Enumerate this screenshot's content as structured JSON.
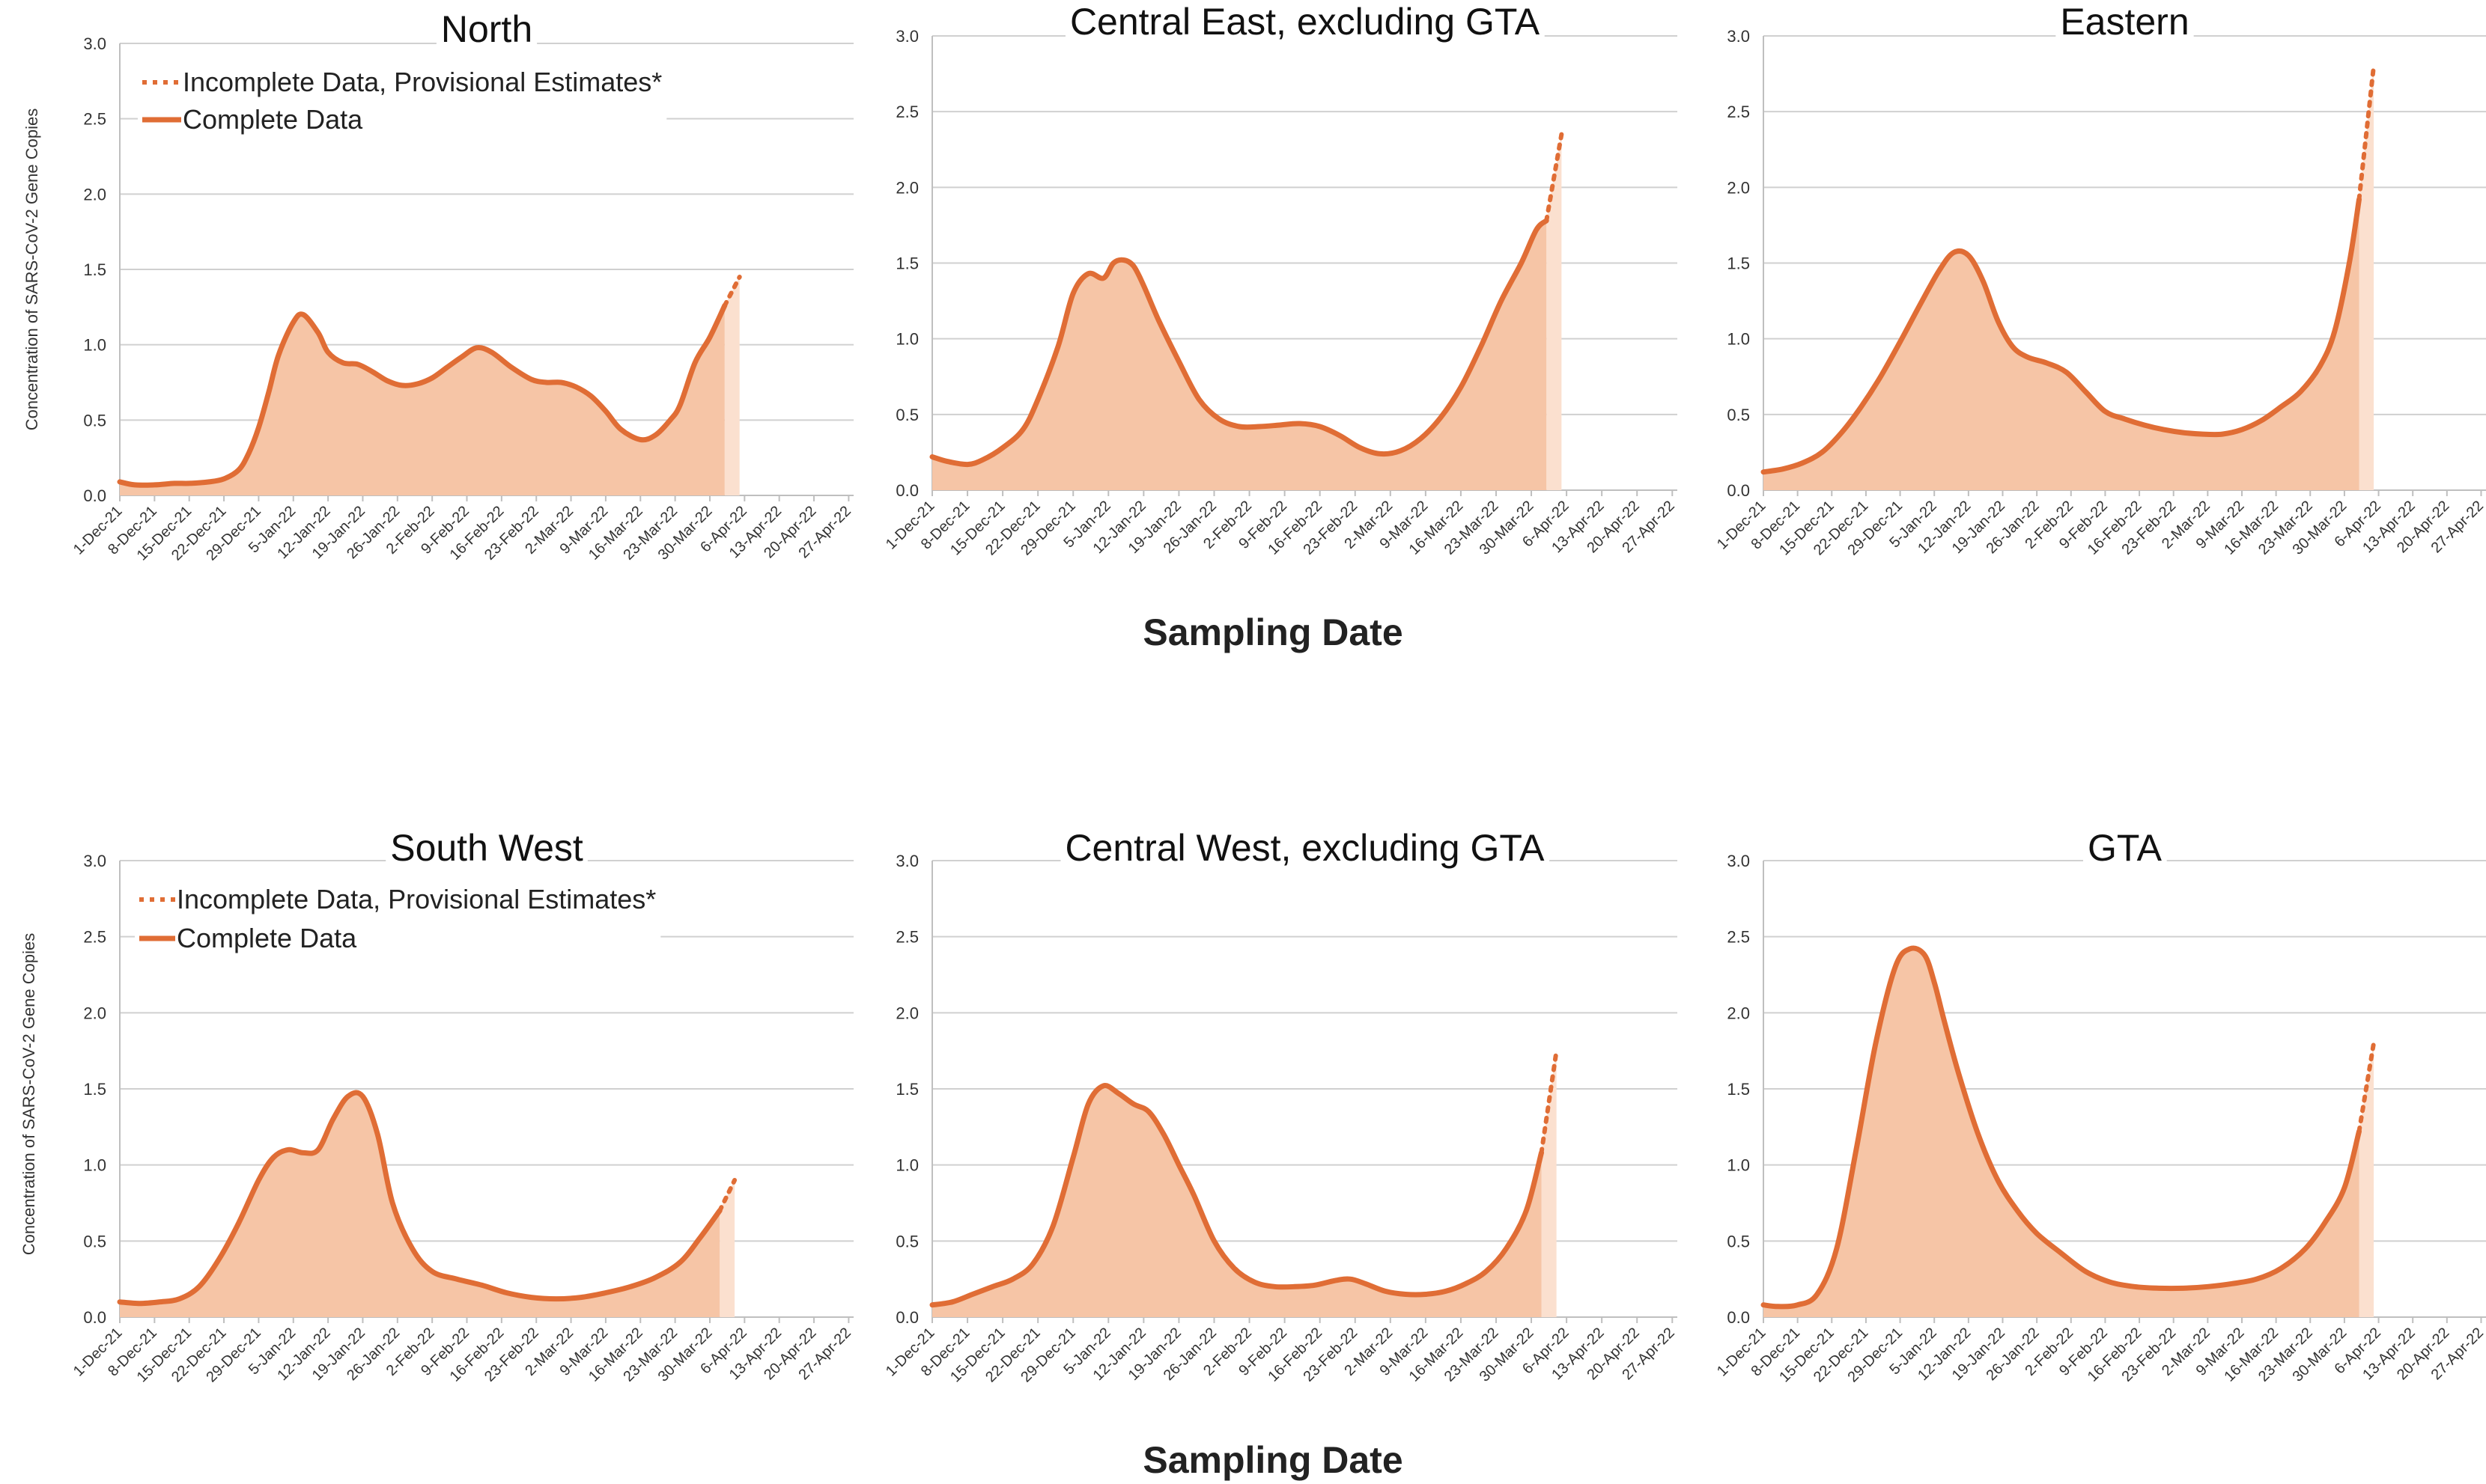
{
  "colors": {
    "line": "#e06d35",
    "fill": "#f6c5a6",
    "fill_provisional": "#fbe0cf",
    "grid": "#d0d0d0"
  },
  "figure": {
    "xlabel_top": "Sampling Date",
    "xlabel_bottom": "Sampling Date",
    "ylabel": "Concentration of SARS-CoV-2 Gene Copies"
  },
  "legend": {
    "incomplete": "Incomplete Data, Provisional Estimates*",
    "complete": "Complete Data"
  },
  "chart_data": [
    {
      "type": "area",
      "title": "North",
      "xlabel": "Sampling Date",
      "ylabel": "Concentration of SARS-CoV-2 Gene Copies",
      "ylim": [
        0,
        3.0
      ],
      "yticks": [
        "0.0",
        "0.5",
        "1.0",
        "1.5",
        "2.0",
        "2.5",
        "3.0"
      ],
      "x_ticks": [
        "1-Dec-21",
        "8-Dec-21",
        "15-Dec-21",
        "22-Dec-21",
        "29-Dec-21",
        "5-Jan-22",
        "12-Jan-22",
        "19-Jan-22",
        "26-Jan-22",
        "2-Feb-22",
        "9-Feb-22",
        "16-Feb-22",
        "23-Feb-22",
        "2-Mar-22",
        "9-Mar-22",
        "16-Mar-22",
        "23-Mar-22",
        "30-Mar-22",
        "6-Apr-22",
        "13-Apr-22",
        "20-Apr-22",
        "27-Apr-22"
      ],
      "grid": true,
      "legend_position": "top-left",
      "series": [
        {
          "name": "Complete Data",
          "x": [
            "1-Dec-21",
            "4-Dec-21",
            "8-Dec-21",
            "12-Dec-21",
            "15-Dec-21",
            "19-Dec-21",
            "22-Dec-21",
            "25-Dec-21",
            "27-Dec-21",
            "29-Dec-21",
            "31-Dec-21",
            "2-Jan-22",
            "5-Jan-22",
            "7-Jan-22",
            "10-Jan-22",
            "12-Jan-22",
            "15-Jan-22",
            "18-Jan-22",
            "21-Jan-22",
            "24-Jan-22",
            "27-Jan-22",
            "30-Jan-22",
            "2-Feb-22",
            "5-Feb-22",
            "8-Feb-22",
            "11-Feb-22",
            "14-Feb-22",
            "18-Feb-22",
            "22-Feb-22",
            "25-Feb-22",
            "28-Feb-22",
            "3-Mar-22",
            "6-Mar-22",
            "9-Mar-22",
            "12-Mar-22",
            "16-Mar-22",
            "19-Mar-22",
            "22-Mar-22",
            "24-Mar-22",
            "27-Mar-22",
            "30-Mar-22",
            "2-Apr-22"
          ],
          "values": [
            0.09,
            0.07,
            0.07,
            0.08,
            0.08,
            0.09,
            0.11,
            0.17,
            0.28,
            0.45,
            0.68,
            0.93,
            1.15,
            1.2,
            1.08,
            0.95,
            0.88,
            0.87,
            0.82,
            0.76,
            0.73,
            0.74,
            0.78,
            0.85,
            0.92,
            0.98,
            0.95,
            0.85,
            0.77,
            0.75,
            0.75,
            0.72,
            0.66,
            0.56,
            0.44,
            0.37,
            0.4,
            0.5,
            0.6,
            0.88,
            1.05,
            1.26
          ]
        },
        {
          "name": "Incomplete Data, Provisional Estimates*",
          "x": [
            "2-Apr-22",
            "5-Apr-22"
          ],
          "values": [
            1.26,
            1.45
          ]
        }
      ]
    },
    {
      "type": "area",
      "title": "Central East, excluding GTA",
      "ylim": [
        0,
        3.0
      ],
      "yticks": [
        "0.0",
        "0.5",
        "1.0",
        "1.5",
        "2.0",
        "2.5",
        "3.0"
      ],
      "x_ticks": [
        "1-Dec-21",
        "8-Dec-21",
        "15-Dec-21",
        "22-Dec-21",
        "29-Dec-21",
        "5-Jan-22",
        "12-Jan-22",
        "19-Jan-22",
        "26-Jan-22",
        "2-Feb-22",
        "9-Feb-22",
        "16-Feb-22",
        "23-Feb-22",
        "2-Mar-22",
        "9-Mar-22",
        "16-Mar-22",
        "23-Mar-22",
        "30-Mar-22",
        "6-Apr-22",
        "13-Apr-22",
        "20-Apr-22",
        "27-Apr-22"
      ],
      "grid": true,
      "series": [
        {
          "name": "Complete Data",
          "x": [
            "1-Dec-21",
            "4-Dec-21",
            "8-Dec-21",
            "11-Dec-21",
            "15-Dec-21",
            "19-Dec-21",
            "22-Dec-21",
            "26-Dec-21",
            "29-Dec-21",
            "1-Jan-22",
            "4-Jan-22",
            "6-Jan-22",
            "8-Jan-22",
            "10-Jan-22",
            "12-Jan-22",
            "15-Jan-22",
            "19-Jan-22",
            "23-Jan-22",
            "27-Jan-22",
            "31-Jan-22",
            "4-Feb-22",
            "8-Feb-22",
            "12-Feb-22",
            "16-Feb-22",
            "20-Feb-22",
            "24-Feb-22",
            "28-Feb-22",
            "4-Mar-22",
            "8-Mar-22",
            "12-Mar-22",
            "16-Mar-22",
            "20-Mar-22",
            "24-Mar-22",
            "28-Mar-22",
            "31-Mar-22",
            "2-Apr-22"
          ],
          "values": [
            0.22,
            0.19,
            0.17,
            0.2,
            0.28,
            0.4,
            0.6,
            0.95,
            1.3,
            1.43,
            1.4,
            1.5,
            1.52,
            1.48,
            1.35,
            1.12,
            0.85,
            0.6,
            0.47,
            0.42,
            0.42,
            0.43,
            0.44,
            0.42,
            0.36,
            0.28,
            0.24,
            0.26,
            0.34,
            0.48,
            0.68,
            0.95,
            1.25,
            1.5,
            1.72,
            1.78
          ]
        },
        {
          "name": "Incomplete Data, Provisional Estimates*",
          "x": [
            "2-Apr-22",
            "5-Apr-22"
          ],
          "values": [
            1.78,
            2.35
          ]
        }
      ]
    },
    {
      "type": "area",
      "title": "Eastern",
      "ylim": [
        0,
        3.0
      ],
      "yticks": [
        "0.0",
        "0.5",
        "1.0",
        "1.5",
        "2.0",
        "2.5",
        "3.0"
      ],
      "x_ticks": [
        "1-Dec-21",
        "8-Dec-21",
        "15-Dec-21",
        "22-Dec-21",
        "29-Dec-21",
        "5-Jan-22",
        "12-Jan-22",
        "19-Jan-22",
        "26-Jan-22",
        "2-Feb-22",
        "9-Feb-22",
        "16-Feb-22",
        "23-Feb-22",
        "2-Mar-22",
        "9-Mar-22",
        "16-Mar-22",
        "23-Mar-22",
        "30-Mar-22",
        "6-Apr-22",
        "13-Apr-22",
        "20-Apr-22",
        "27-Apr-22"
      ],
      "grid": true,
      "series": [
        {
          "name": "Complete Data",
          "x": [
            "1-Dec-21",
            "5-Dec-21",
            "9-Dec-21",
            "13-Dec-21",
            "17-Dec-21",
            "21-Dec-21",
            "25-Dec-21",
            "29-Dec-21",
            "2-Jan-22",
            "6-Jan-22",
            "9-Jan-22",
            "12-Jan-22",
            "15-Jan-22",
            "18-Jan-22",
            "21-Jan-22",
            "24-Jan-22",
            "28-Jan-22",
            "1-Feb-22",
            "5-Feb-22",
            "9-Feb-22",
            "13-Feb-22",
            "17-Feb-22",
            "21-Feb-22",
            "25-Feb-22",
            "1-Mar-22",
            "5-Mar-22",
            "9-Mar-22",
            "13-Mar-22",
            "17-Mar-22",
            "21-Mar-22",
            "25-Mar-22",
            "28-Mar-22",
            "31-Mar-22",
            "2-Apr-22"
          ],
          "values": [
            0.12,
            0.14,
            0.18,
            0.25,
            0.38,
            0.55,
            0.75,
            0.98,
            1.22,
            1.45,
            1.57,
            1.55,
            1.38,
            1.12,
            0.95,
            0.88,
            0.84,
            0.78,
            0.65,
            0.52,
            0.47,
            0.43,
            0.4,
            0.38,
            0.37,
            0.37,
            0.4,
            0.46,
            0.55,
            0.65,
            0.82,
            1.05,
            1.5,
            1.92
          ]
        },
        {
          "name": "Incomplete Data, Provisional Estimates*",
          "x": [
            "2-Apr-22",
            "5-Apr-22"
          ],
          "values": [
            1.92,
            2.8
          ]
        }
      ]
    },
    {
      "type": "area",
      "title": "South West",
      "ylim": [
        0,
        3.0
      ],
      "yticks": [
        "0.0",
        "0.5",
        "1.0",
        "1.5",
        "2.0",
        "2.5",
        "3.0"
      ],
      "x_ticks": [
        "1-Dec-21",
        "8-Dec-21",
        "15-Dec-21",
        "22-Dec-21",
        "29-Dec-21",
        "5-Jan-22",
        "12-Jan-22",
        "19-Jan-22",
        "26-Jan-22",
        "2-Feb-22",
        "9-Feb-22",
        "16-Feb-22",
        "23-Feb-22",
        "2-Mar-22",
        "9-Mar-22",
        "16-Mar-22",
        "23-Mar-22",
        "30-Mar-22",
        "6-Apr-22",
        "13-Apr-22",
        "20-Apr-22",
        "27-Apr-22"
      ],
      "grid": true,
      "legend_position": "top-left",
      "series": [
        {
          "name": "Complete Data",
          "x": [
            "1-Dec-21",
            "5-Dec-21",
            "9-Dec-21",
            "13-Dec-21",
            "17-Dec-21",
            "21-Dec-21",
            "25-Dec-21",
            "29-Dec-21",
            "1-Jan-22",
            "4-Jan-22",
            "7-Jan-22",
            "10-Jan-22",
            "13-Jan-22",
            "16-Jan-22",
            "19-Jan-22",
            "22-Jan-22",
            "25-Jan-22",
            "29-Jan-22",
            "2-Feb-22",
            "7-Feb-22",
            "12-Feb-22",
            "17-Feb-22",
            "22-Feb-22",
            "27-Feb-22",
            "4-Mar-22",
            "9-Mar-22",
            "14-Mar-22",
            "19-Mar-22",
            "24-Mar-22",
            "28-Mar-22",
            "1-Apr-22"
          ],
          "values": [
            0.1,
            0.09,
            0.1,
            0.12,
            0.2,
            0.38,
            0.62,
            0.9,
            1.05,
            1.1,
            1.08,
            1.1,
            1.3,
            1.45,
            1.45,
            1.2,
            0.75,
            0.45,
            0.3,
            0.25,
            0.21,
            0.16,
            0.13,
            0.12,
            0.13,
            0.16,
            0.2,
            0.26,
            0.36,
            0.52,
            0.7
          ]
        },
        {
          "name": "Incomplete Data, Provisional Estimates*",
          "x": [
            "1-Apr-22",
            "4-Apr-22"
          ],
          "values": [
            0.7,
            0.9
          ]
        }
      ]
    },
    {
      "type": "area",
      "title": "Central West, excluding GTA",
      "ylim": [
        0,
        3.0
      ],
      "yticks": [
        "0.0",
        "0.5",
        "1.0",
        "1.5",
        "2.0",
        "2.5",
        "3.0"
      ],
      "x_ticks": [
        "1-Dec-21",
        "8-Dec-21",
        "15-Dec-21",
        "22-Dec-21",
        "29-Dec-21",
        "5-Jan-22",
        "12-Jan-22",
        "19-Jan-22",
        "26-Jan-22",
        "2-Feb-22",
        "9-Feb-22",
        "16-Feb-22",
        "23-Feb-22",
        "2-Mar-22",
        "9-Mar-22",
        "16-Mar-22",
        "23-Mar-22",
        "30-Mar-22",
        "6-Apr-22",
        "13-Apr-22",
        "20-Apr-22",
        "27-Apr-22"
      ],
      "grid": true,
      "series": [
        {
          "name": "Complete Data",
          "x": [
            "1-Dec-21",
            "5-Dec-21",
            "9-Dec-21",
            "13-Dec-21",
            "17-Dec-21",
            "21-Dec-21",
            "25-Dec-21",
            "29-Dec-21",
            "1-Jan-22",
            "4-Jan-22",
            "7-Jan-22",
            "10-Jan-22",
            "13-Jan-22",
            "16-Jan-22",
            "19-Jan-22",
            "22-Jan-22",
            "26-Jan-22",
            "30-Jan-22",
            "3-Feb-22",
            "7-Feb-22",
            "11-Feb-22",
            "15-Feb-22",
            "19-Feb-22",
            "22-Feb-22",
            "25-Feb-22",
            "1-Mar-22",
            "5-Mar-22",
            "9-Mar-22",
            "13-Mar-22",
            "17-Mar-22",
            "21-Mar-22",
            "25-Mar-22",
            "29-Mar-22",
            "1-Apr-22"
          ],
          "values": [
            0.08,
            0.1,
            0.15,
            0.2,
            0.25,
            0.35,
            0.6,
            1.05,
            1.4,
            1.52,
            1.47,
            1.4,
            1.35,
            1.2,
            1.0,
            0.8,
            0.5,
            0.32,
            0.23,
            0.2,
            0.2,
            0.21,
            0.24,
            0.25,
            0.22,
            0.17,
            0.15,
            0.15,
            0.17,
            0.22,
            0.3,
            0.45,
            0.7,
            1.08
          ]
        },
        {
          "name": "Incomplete Data, Provisional Estimates*",
          "x": [
            "1-Apr-22",
            "4-Apr-22"
          ],
          "values": [
            1.08,
            1.75
          ]
        }
      ]
    },
    {
      "type": "area",
      "title": "GTA",
      "ylim": [
        0,
        3.0
      ],
      "yticks": [
        "0.0",
        "0.5",
        "1.0",
        "1.5",
        "2.0",
        "2.5",
        "3.0"
      ],
      "x_ticks": [
        "1-Dec-21",
        "8-Dec-21",
        "15-Dec-21",
        "22-Dec-21",
        "29-Dec-21",
        "5-Jan-22",
        "12-Jan-22",
        "19-Jan-22",
        "26-Jan-22",
        "2-Feb-22",
        "9-Feb-22",
        "16-Feb-22",
        "23-Feb-22",
        "2-Mar-22",
        "9-Mar-22",
        "16-Mar-22",
        "23-Mar-22",
        "30-Mar-22",
        "6-Apr-22",
        "13-Apr-22",
        "20-Apr-22",
        "27-Apr-22"
      ],
      "grid": true,
      "series": [
        {
          "name": "Complete Data",
          "x": [
            "1-Dec-21",
            "4-Dec-21",
            "8-Dec-21",
            "12-Dec-21",
            "16-Dec-21",
            "20-Dec-21",
            "24-Dec-21",
            "28-Dec-21",
            "31-Dec-21",
            "3-Jan-22",
            "5-Jan-22",
            "7-Jan-22",
            "10-Jan-22",
            "14-Jan-22",
            "18-Jan-22",
            "22-Jan-22",
            "26-Jan-22",
            "31-Jan-22",
            "5-Feb-22",
            "10-Feb-22",
            "15-Feb-22",
            "20-Feb-22",
            "25-Feb-22",
            "2-Mar-22",
            "7-Mar-22",
            "12-Mar-22",
            "17-Mar-22",
            "22-Mar-22",
            "26-Mar-22",
            "30-Mar-22",
            "2-Apr-22"
          ],
          "values": [
            0.08,
            0.07,
            0.08,
            0.15,
            0.45,
            1.1,
            1.8,
            2.3,
            2.42,
            2.38,
            2.2,
            1.95,
            1.6,
            1.2,
            0.9,
            0.7,
            0.55,
            0.42,
            0.3,
            0.23,
            0.2,
            0.19,
            0.19,
            0.2,
            0.22,
            0.25,
            0.32,
            0.45,
            0.62,
            0.85,
            1.22
          ]
        },
        {
          "name": "Incomplete Data, Provisional Estimates*",
          "x": [
            "2-Apr-22",
            "5-Apr-22"
          ],
          "values": [
            1.22,
            1.8
          ]
        }
      ]
    }
  ]
}
